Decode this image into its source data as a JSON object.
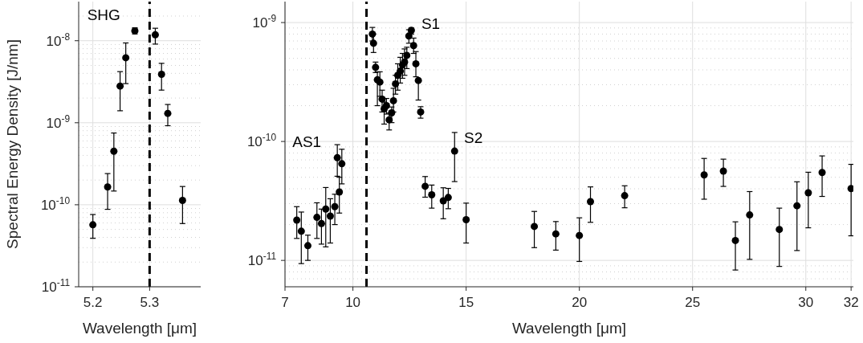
{
  "chart_data": [
    {
      "type": "scatter",
      "ylabel": "Spectral Energy Density [J/nm]",
      "xlabel": "Wavelength [μm]",
      "log": "y",
      "grid": true,
      "marker": "circle",
      "xlim": [
        5.175,
        5.39
      ],
      "xticks": [
        5.2,
        5.3
      ],
      "ylim": [
        1e-11,
        3e-08
      ],
      "yticks": [
        {
          "value": 1e-11,
          "label": "10$^{-11}$"
        },
        {
          "value": 1e-10,
          "label": "10$^{-10}$"
        },
        {
          "value": 1e-09,
          "label": "10$^{-9}$"
        },
        {
          "value": 1e-08,
          "label": "10$^{-8}$"
        }
      ],
      "ref_lines": [
        {
          "axis": "x",
          "value": 5.3,
          "color": "#000000",
          "line_style": "dashed"
        }
      ],
      "annotations": [
        "SHG"
      ],
      "series": [
        {
          "color": "#000000",
          "x": [
            5.2,
            5.226,
            5.237,
            5.248,
            5.258,
            5.274,
            5.31,
            5.321,
            5.332,
            5.358
          ],
          "values": [
            5.7e-11,
            1.65e-10,
            4.5e-10,
            2.8e-09,
            6.2e-09,
            1.32e-08,
            1.18e-08,
            3.9e-09,
            1.3e-09,
            1.13e-10
          ],
          "errors": [
            [
              3.9e-11,
              7.6e-11
            ],
            [
              8.8e-11,
              2.4e-10
            ],
            [
              1.47e-10,
              7.5e-10
            ],
            [
              1.4e-09,
              4.2e-09
            ],
            [
              3e-09,
              9.4e-09
            ],
            [
              1.21e-08,
              1.44e-08
            ],
            [
              9.1e-09,
              1.42e-08
            ],
            [
              2.5e-09,
              5.3e-09
            ],
            [
              9.2e-10,
              1.67e-09
            ],
            [
              5.9e-11,
              1.67e-10
            ]
          ]
        }
      ]
    },
    {
      "type": "scatter",
      "xlabel": "Wavelength [μm]",
      "log": "y",
      "grid": true,
      "marker": "circle",
      "xlim": [
        7,
        32.1
      ],
      "xticks": [
        7,
        10,
        15,
        20,
        25,
        30,
        32
      ],
      "ylim": [
        6e-12,
        1.5e-09
      ],
      "yticks": [
        {
          "value": 1e-11,
          "label": "10$^{-11}$"
        },
        {
          "value": 1e-10,
          "label": "10$^{-10}$"
        },
        {
          "value": 1e-09,
          "label": "10$^{-9}$"
        }
      ],
      "ref_lines": [
        {
          "axis": "x",
          "value": 10.6,
          "color": "#000000",
          "line_style": "dashed"
        }
      ],
      "annotations": [
        "AS1",
        "S1",
        "S2"
      ],
      "series": [
        {
          "color": "#000000",
          "x": [
            7.52,
            7.72,
            8.01,
            8.41,
            8.61,
            8.8,
            9.0,
            9.2,
            9.31,
            9.4,
            9.51,
            10.86,
            10.91,
            11.0,
            11.08,
            11.19,
            11.29,
            11.38,
            11.48,
            11.6,
            11.71,
            11.79,
            11.88,
            11.98,
            12.09,
            12.19,
            12.28,
            12.38,
            12.47,
            12.58,
            12.68,
            12.78,
            12.89,
            12.99,
            13.19,
            13.48,
            13.99,
            14.21,
            14.49,
            15.0,
            18.01,
            18.96,
            20.0,
            20.49,
            22.0,
            25.51,
            26.36,
            26.89,
            27.52,
            28.83,
            29.61,
            30.11,
            30.72,
            32.0
          ],
          "values": [
            2.18e-11,
            1.76e-11,
            1.33e-11,
            2.3e-11,
            2.04e-11,
            2.7e-11,
            2.36e-11,
            2.83e-11,
            7.3e-11,
            3.76e-11,
            6.5e-11,
            8e-10,
            6.7e-10,
            4.2e-10,
            3.3e-10,
            3.16e-10,
            2.27e-10,
            1.88e-10,
            2e-10,
            1.52e-10,
            1.74e-10,
            2.2e-10,
            3.05e-10,
            3.6e-10,
            3.9e-10,
            4.4e-10,
            4.65e-10,
            5.3e-10,
            7.7e-10,
            8.6e-10,
            6.4e-10,
            4.5e-10,
            3.26e-10,
            1.77e-10,
            4.2e-11,
            3.56e-11,
            3.17e-11,
            3.38e-11,
            8.3e-11,
            2.2e-11,
            1.93e-11,
            1.67e-11,
            1.62e-11,
            3.12e-11,
            3.5e-11,
            5.23e-11,
            5.63e-11,
            1.47e-11,
            2.41e-11,
            1.82e-11,
            2.88e-11,
            3.7e-11,
            5.48e-11,
            4.02e-11
          ],
          "errors": [
            [
              1.53e-11,
              2.83e-11
            ],
            [
              9.4e-12,
              2.55e-11
            ],
            [
              1e-11,
              1.63e-11
            ],
            [
              1.53e-11,
              3.05e-11
            ],
            [
              1.37e-11,
              2.7e-11
            ],
            [
              1.3e-11,
              4.1e-11
            ],
            [
              1.4e-11,
              3.3e-11
            ],
            [
              2e-11,
              3.6e-11
            ],
            [
              5.1e-11,
              9.4e-11
            ],
            [
              2.5e-11,
              5e-11
            ],
            [
              4.4e-11,
              8.6e-11
            ],
            [
              7e-10,
              9.1e-10
            ],
            [
              5.6e-10,
              8e-10
            ],
            [
              3.8e-10,
              4.65e-10
            ],
            [
              2e-10,
              3.85e-10
            ],
            [
              2.4e-10,
              3.85e-10
            ],
            [
              1.77e-10,
              2.7e-10
            ],
            [
              1.4e-10,
              2.15e-10
            ],
            [
              1.7e-10,
              2.3e-10
            ],
            [
              1.25e-10,
              1.73e-10
            ],
            [
              1.44e-10,
              1.95e-10
            ],
            [
              1.77e-10,
              2.8e-10
            ],
            [
              2.5e-10,
              3.6e-10
            ],
            [
              2.7e-10,
              4.5e-10
            ],
            [
              3.1e-10,
              5.1e-10
            ],
            [
              3.4e-10,
              5.5e-10
            ],
            [
              3.6e-10,
              6e-10
            ],
            [
              4.1e-10,
              6.2e-10
            ],
            [
              6.7e-10,
              8.7e-10
            ],
            [
              8e-10,
              9e-10
            ],
            [
              5.5e-10,
              7.4e-10
            ],
            [
              3.5e-10,
              5.7e-10
            ],
            [
              2.23e-10,
              3.3e-10
            ],
            [
              1.57e-10,
              1.96e-10
            ],
            [
              3.4e-11,
              5.07e-11
            ],
            [
              2.75e-11,
              4.3e-11
            ],
            [
              2.24e-11,
              4.08e-11
            ],
            [
              2.72e-11,
              4.03e-11
            ],
            [
              4.6e-11,
              1.19e-10
            ],
            [
              1.4e-11,
              3.03e-11
            ],
            [
              1.28e-11,
              2.58e-11
            ],
            [
              1.22e-11,
              2.12e-11
            ],
            [
              9.8e-12,
              2.28e-11
            ],
            [
              2.09e-11,
              4.15e-11
            ],
            [
              2.77e-11,
              4.24e-11
            ],
            [
              3.27e-11,
              7.2e-11
            ],
            [
              4.19e-11,
              7.1e-11
            ],
            [
              8.3e-12,
              2.11e-11
            ],
            [
              1.02e-11,
              3.79e-11
            ],
            [
              8.9e-12,
              2.75e-11
            ],
            [
              1.21e-11,
              4.58e-11
            ],
            [
              1.88e-11,
              5.51e-11
            ],
            [
              3.45e-11,
              7.56e-11
            ],
            [
              1.61e-11,
              6.42e-11
            ]
          ]
        }
      ]
    }
  ]
}
